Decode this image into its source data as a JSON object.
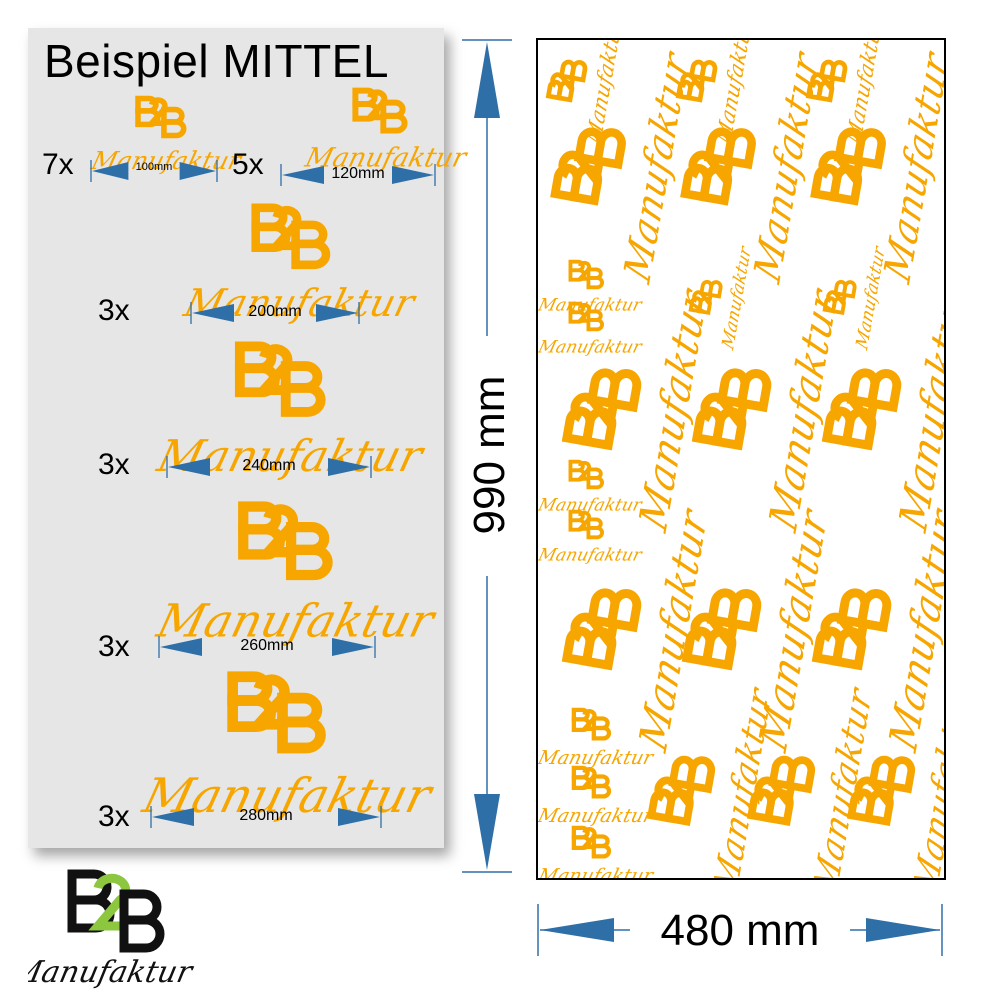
{
  "colors": {
    "logo_orange": "#f7a600",
    "arrow_blue": "#2f6fa8",
    "brand_green": "#8dc63f",
    "brand_black": "#111111",
    "panel_gray": "#e6e6e6"
  },
  "left_panel": {
    "title": "Beispiel MITTEL",
    "rows": [
      {
        "qty": "7x",
        "size": "100mm"
      },
      {
        "qty": "5x",
        "size": "120mm"
      },
      {
        "qty": "3x",
        "size": "200mm"
      },
      {
        "qty": "3x",
        "size": "240mm"
      },
      {
        "qty": "3x",
        "size": "260mm"
      },
      {
        "qty": "3x",
        "size": "280mm"
      }
    ]
  },
  "logo": {
    "script_text": "Manufaktur"
  },
  "sheet": {
    "height_label": "990 mm",
    "width_label": "480 mm"
  },
  "bottom_logo": {
    "script_text": "Manufaktur"
  }
}
